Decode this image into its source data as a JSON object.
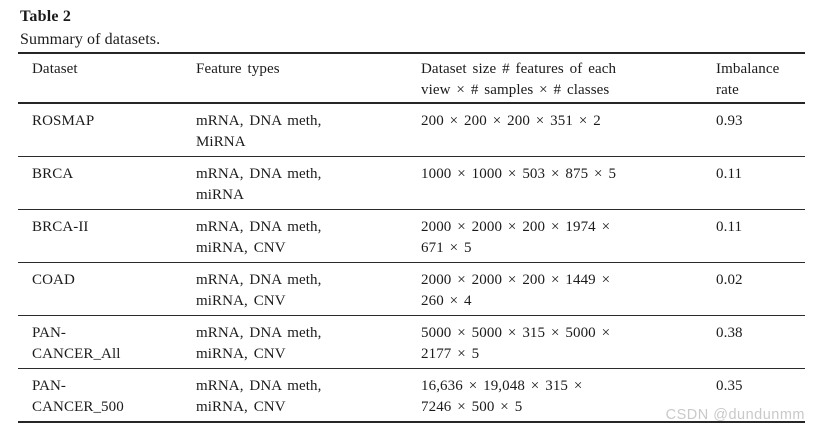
{
  "page": {
    "background": "#ffffff",
    "text_color": "#1b1b1b",
    "rule_color": "#262626"
  },
  "table": {
    "title": "Table 2",
    "caption": "Summary of datasets.",
    "columns": [
      {
        "id": "dataset",
        "lines": [
          "Dataset"
        ]
      },
      {
        "id": "feature_types",
        "lines": [
          "Feature types"
        ]
      },
      {
        "id": "dataset_size",
        "lines": [
          "Dataset size # features of each",
          "view × # samples × # classes"
        ]
      },
      {
        "id": "imbalance_rate",
        "lines": [
          "Imbalance",
          "rate"
        ]
      }
    ],
    "rows": [
      {
        "dataset": [
          "ROSMAP"
        ],
        "feature_types": [
          "mRNA, DNA meth,",
          "MiRNA"
        ],
        "dataset_size": [
          "200 × 200 × 200 × 351 × 2"
        ],
        "imbalance_rate": "0.93"
      },
      {
        "dataset": [
          "BRCA"
        ],
        "feature_types": [
          "mRNA, DNA meth,",
          "miRNA"
        ],
        "dataset_size": [
          "1000 × 1000 × 503 × 875 × 5"
        ],
        "imbalance_rate": "0.11"
      },
      {
        "dataset": [
          "BRCA-II"
        ],
        "feature_types": [
          "mRNA, DNA meth,",
          "miRNA, CNV"
        ],
        "dataset_size": [
          "2000 × 2000 × 200 × 1974 ×",
          "671 × 5"
        ],
        "imbalance_rate": "0.11"
      },
      {
        "dataset": [
          "COAD"
        ],
        "feature_types": [
          "mRNA, DNA meth,",
          "miRNA, CNV"
        ],
        "dataset_size": [
          "2000 × 2000 × 200 × 1449 ×",
          "260 × 4"
        ],
        "imbalance_rate": "0.02"
      },
      {
        "dataset": [
          "PAN-",
          "CANCER_All"
        ],
        "feature_types": [
          "mRNA, DNA meth,",
          "miRNA, CNV"
        ],
        "dataset_size": [
          "5000 × 5000 × 315 × 5000 ×",
          "2177 × 5"
        ],
        "imbalance_rate": "0.38"
      },
      {
        "dataset": [
          "PAN-",
          "CANCER_500"
        ],
        "feature_types": [
          "mRNA, DNA meth,",
          "miRNA, CNV"
        ],
        "dataset_size": [
          "16,636 × 19,048 × 315 ×",
          "7246 × 500 × 5"
        ],
        "imbalance_rate": "0.35"
      }
    ]
  },
  "watermark": {
    "text": "CSDN @dundunmm",
    "color": "#c9c9c9"
  }
}
